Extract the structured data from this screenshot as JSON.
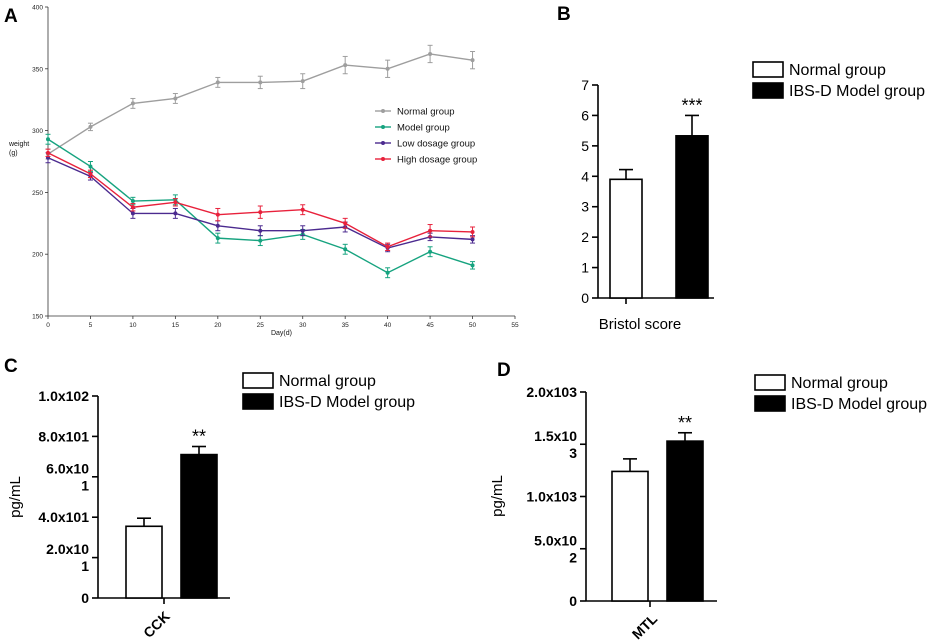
{
  "panels": {
    "a": "A",
    "b": "B",
    "c": "C",
    "d": "D"
  },
  "chart_data": [
    {
      "id": "A",
      "type": "line",
      "title": "",
      "xlabel": "Day(d)",
      "ylabel_line1": "weight",
      "ylabel_line2": "(g)",
      "xlim": [
        0,
        55
      ],
      "ylim": [
        150,
        400
      ],
      "x_ticks": [
        0,
        5,
        10,
        15,
        20,
        25,
        30,
        35,
        40,
        45,
        50,
        55
      ],
      "y_ticks": [
        150,
        200,
        250,
        300,
        350,
        400
      ],
      "x": [
        0,
        5,
        10,
        15,
        20,
        25,
        30,
        35,
        40,
        45,
        50
      ],
      "series": [
        {
          "name": "Normal group",
          "color": "#9e9e9e",
          "values": [
            281,
            303,
            322,
            326,
            339,
            339,
            340,
            353,
            350,
            362,
            357
          ],
          "errors": [
            4,
            3,
            4,
            4,
            4,
            5,
            6,
            7,
            7,
            7,
            7
          ]
        },
        {
          "name": "Model group",
          "color": "#16a37f",
          "values": [
            293,
            271,
            243,
            244,
            213,
            211,
            216,
            204,
            185,
            202,
            191
          ],
          "errors": [
            4,
            4,
            3,
            4,
            4,
            4,
            4,
            4,
            4,
            4,
            3
          ]
        },
        {
          "name": "Low dosage group",
          "color": "#4b2a8f",
          "values": [
            278,
            263,
            233,
            233,
            223,
            219,
            219,
            222,
            205,
            214,
            212
          ],
          "errors": [
            4,
            3,
            4,
            4,
            4,
            4,
            4,
            4,
            3,
            3,
            3
          ]
        },
        {
          "name": "High dosage group",
          "color": "#e8213b",
          "values": [
            282,
            265,
            238,
            242,
            232,
            234,
            236,
            225,
            206,
            219,
            218
          ],
          "errors": [
            3,
            3,
            3,
            3,
            5,
            5,
            4,
            4,
            3,
            5,
            4
          ]
        }
      ],
      "legend": "center-right"
    },
    {
      "id": "B",
      "type": "bar",
      "categories": [
        "Normal group",
        "IBS-D Model group"
      ],
      "values": [
        3.9,
        5.33
      ],
      "errors": [
        0.32,
        0.67
      ],
      "colors": [
        "#ffffff",
        "#000000"
      ],
      "xlabel": "Bristol score",
      "ylabel": "",
      "ylim": [
        0,
        7
      ],
      "y_ticks": [
        "0",
        "1",
        "2",
        "3",
        "4",
        "5",
        "6",
        "7"
      ],
      "significance": "***",
      "legend": "top-right"
    },
    {
      "id": "C",
      "type": "bar",
      "categories": [
        "Normal group",
        "IBS-D Model group"
      ],
      "values": [
        35.5,
        71
      ],
      "errors": [
        4,
        4
      ],
      "colors": [
        "#ffffff",
        "#000000"
      ],
      "xlabel": "CCK",
      "ylabel": "pg/mL",
      "ylim": [
        0,
        100
      ],
      "y_tick_values": [
        0,
        20,
        40,
        60,
        80,
        100
      ],
      "y_tick_labels": [
        "0",
        "2.0x10\n1",
        "4.0x101",
        "6.0x10\n1",
        "8.0x101",
        "1.0x102"
      ],
      "significance": "**",
      "legend": "top-right"
    },
    {
      "id": "D",
      "type": "bar",
      "categories": [
        "Normal group",
        "IBS-D Model group"
      ],
      "values": [
        1240,
        1530
      ],
      "errors": [
        120,
        80
      ],
      "colors": [
        "#ffffff",
        "#000000"
      ],
      "xlabel": "MTL",
      "ylabel": "pg/mL",
      "ylim": [
        0,
        2000
      ],
      "y_tick_values": [
        0,
        500,
        1000,
        1500,
        2000
      ],
      "y_tick_labels": [
        "0",
        "5.0x10\n2",
        "1.0x103",
        "1.5x10\n3",
        "2.0x103"
      ],
      "significance": "**",
      "legend": "top-right"
    }
  ]
}
